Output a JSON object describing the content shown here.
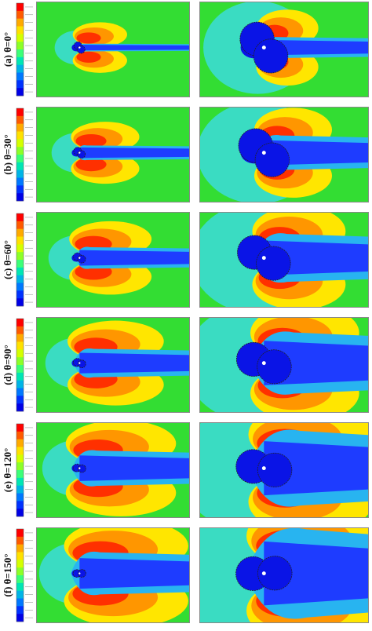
{
  "panels": [
    {
      "label": "(a) θ=0°",
      "angle": 0
    },
    {
      "label": "(b) θ=30°",
      "angle": 30
    },
    {
      "label": "(c) θ=60°",
      "angle": 60
    },
    {
      "label": "(d) θ=90°",
      "angle": 90
    },
    {
      "label": "(e) θ=120°",
      "angle": 120
    },
    {
      "label": "(f) θ=150°",
      "angle": 150
    }
  ],
  "colorbar": {
    "colors": [
      "#ff0000",
      "#ff5a00",
      "#ffaa00",
      "#ffe100",
      "#d4ff00",
      "#8cff28",
      "#3cff78",
      "#00e6b4",
      "#00b4e6",
      "#0078ff",
      "#0032ff",
      "#0000e6"
    ]
  },
  "field_colors": {
    "background": "#33dd33",
    "deficit": "#1e3cff",
    "deficit_core": "#0a14e6",
    "mid_blue": "#28b4f0",
    "cyan": "#3cdcdc",
    "yellow": "#ffe600",
    "orange": "#ff9600",
    "red": "#ff3000",
    "body_white": "#ffffff"
  }
}
